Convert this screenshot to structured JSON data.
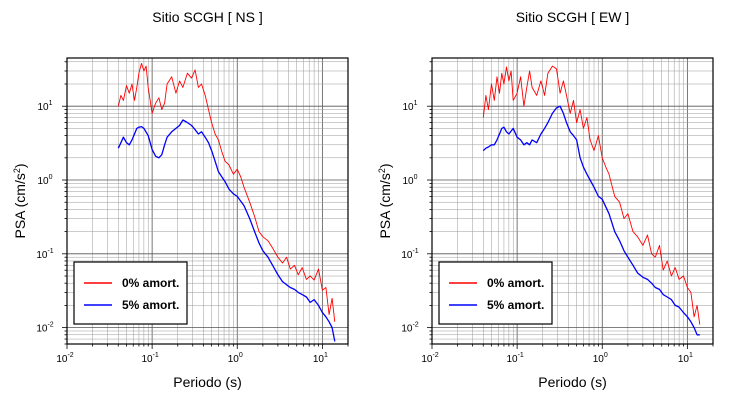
{
  "colors": {
    "series_0": "#ff0000",
    "series_5": "#0000ff",
    "grid": "#000000",
    "frame": "#000000"
  },
  "chart_data": [
    {
      "type": "line",
      "title": "Sitio SCGH [ NS ]",
      "xlabel": "Periodo (s)",
      "ylabel_base": "PSA (cm/s",
      "ylabel_exp": "2",
      "ylabel_end": ")",
      "xscale": "log",
      "yscale": "log",
      "xlim": [
        0.01,
        20
      ],
      "ylim": [
        0.006,
        45
      ],
      "grid": true,
      "legend_position": "bottom-left",
      "xticks": [
        {
          "value": 0.01,
          "base": "10",
          "exp": "-2"
        },
        {
          "value": 0.1,
          "base": "10",
          "exp": "-1"
        },
        {
          "value": 1,
          "base": "10",
          "exp": "0"
        },
        {
          "value": 10,
          "base": "10",
          "exp": "1"
        }
      ],
      "yticks": [
        {
          "value": 0.01,
          "base": "10",
          "exp": "-2"
        },
        {
          "value": 0.1,
          "base": "10",
          "exp": "-1"
        },
        {
          "value": 1,
          "base": "10",
          "exp": "0"
        },
        {
          "value": 10,
          "base": "10",
          "exp": "1"
        }
      ],
      "series": [
        {
          "name": "0% amort.",
          "color": "#ff0000",
          "x": [
            0.04,
            0.043,
            0.046,
            0.05,
            0.054,
            0.058,
            0.062,
            0.066,
            0.07,
            0.075,
            0.08,
            0.085,
            0.09,
            0.1,
            0.11,
            0.12,
            0.13,
            0.14,
            0.15,
            0.17,
            0.19,
            0.21,
            0.23,
            0.26,
            0.29,
            0.32,
            0.35,
            0.38,
            0.42,
            0.46,
            0.5,
            0.55,
            0.6,
            0.66,
            0.72,
            0.8,
            0.9,
            1.0,
            1.1,
            1.2,
            1.4,
            1.6,
            1.8,
            2.0,
            2.3,
            2.6,
            3.0,
            3.4,
            3.8,
            4.2,
            4.7,
            5.2,
            5.8,
            6.5,
            7.2,
            8.0,
            9.0,
            10,
            11,
            12,
            13,
            14
          ],
          "y": [
            10,
            14,
            12,
            19,
            15,
            20,
            12,
            18,
            28,
            38,
            30,
            35,
            18,
            8,
            11,
            13,
            9,
            11,
            20,
            25,
            15,
            22,
            18,
            28,
            24,
            31,
            18,
            20,
            14,
            9,
            6,
            4.2,
            3.5,
            2.4,
            1.8,
            1.6,
            1.2,
            1.4,
            1.1,
            0.8,
            0.5,
            0.32,
            0.2,
            0.17,
            0.15,
            0.12,
            0.09,
            0.075,
            0.09,
            0.062,
            0.07,
            0.052,
            0.065,
            0.045,
            0.05,
            0.044,
            0.062,
            0.032,
            0.035,
            0.015,
            0.025,
            0.012
          ]
        },
        {
          "name": "5% amort.",
          "color": "#0000ff",
          "x": [
            0.04,
            0.043,
            0.046,
            0.05,
            0.054,
            0.058,
            0.062,
            0.066,
            0.07,
            0.075,
            0.08,
            0.09,
            0.1,
            0.11,
            0.12,
            0.13,
            0.14,
            0.15,
            0.17,
            0.19,
            0.21,
            0.23,
            0.26,
            0.29,
            0.32,
            0.35,
            0.38,
            0.42,
            0.46,
            0.5,
            0.55,
            0.6,
            0.66,
            0.72,
            0.8,
            0.9,
            1.0,
            1.2,
            1.4,
            1.6,
            1.8,
            2.0,
            2.3,
            2.6,
            3.0,
            3.4,
            3.8,
            4.2,
            4.7,
            5.2,
            5.8,
            6.5,
            7.2,
            8.0,
            9.0,
            10,
            11,
            12,
            13,
            14
          ],
          "y": [
            2.7,
            3.2,
            3.8,
            3.2,
            3.0,
            3.5,
            4.2,
            5.0,
            5.2,
            5.3,
            5.0,
            4.0,
            2.6,
            2.1,
            2.0,
            2.2,
            3.0,
            3.8,
            4.5,
            5.0,
            5.5,
            6.5,
            6.0,
            5.5,
            4.8,
            4.2,
            4.5,
            3.8,
            3.2,
            2.5,
            1.8,
            1.3,
            1.1,
            0.95,
            0.75,
            0.65,
            0.6,
            0.45,
            0.3,
            0.2,
            0.14,
            0.11,
            0.09,
            0.07,
            0.052,
            0.042,
            0.038,
            0.035,
            0.033,
            0.03,
            0.028,
            0.026,
            0.022,
            0.024,
            0.02,
            0.016,
            0.014,
            0.012,
            0.01,
            0.0065
          ]
        }
      ]
    },
    {
      "type": "line",
      "title": "Sitio SCGH [ EW ]",
      "xlabel": "Periodo (s)",
      "ylabel_base": "PSA (cm/s",
      "ylabel_exp": "2",
      "ylabel_end": ")",
      "xscale": "log",
      "yscale": "log",
      "xlim": [
        0.01,
        20
      ],
      "ylim": [
        0.006,
        45
      ],
      "grid": true,
      "legend_position": "bottom-left",
      "xticks": [
        {
          "value": 0.01,
          "base": "10",
          "exp": "-2"
        },
        {
          "value": 0.1,
          "base": "10",
          "exp": "-1"
        },
        {
          "value": 1,
          "base": "10",
          "exp": "0"
        },
        {
          "value": 10,
          "base": "10",
          "exp": "1"
        }
      ],
      "yticks": [
        {
          "value": 0.01,
          "base": "10",
          "exp": "-2"
        },
        {
          "value": 0.1,
          "base": "10",
          "exp": "-1"
        },
        {
          "value": 1,
          "base": "10",
          "exp": "0"
        },
        {
          "value": 10,
          "base": "10",
          "exp": "1"
        }
      ],
      "series": [
        {
          "name": "0% amort.",
          "color": "#ff0000",
          "x": [
            0.04,
            0.043,
            0.046,
            0.05,
            0.054,
            0.058,
            0.062,
            0.066,
            0.07,
            0.075,
            0.08,
            0.085,
            0.09,
            0.1,
            0.11,
            0.12,
            0.13,
            0.14,
            0.15,
            0.17,
            0.19,
            0.21,
            0.23,
            0.26,
            0.29,
            0.32,
            0.35,
            0.38,
            0.42,
            0.46,
            0.5,
            0.55,
            0.6,
            0.66,
            0.72,
            0.8,
            0.9,
            1.0,
            1.1,
            1.2,
            1.4,
            1.6,
            1.8,
            2.0,
            2.3,
            2.6,
            3.0,
            3.4,
            3.8,
            4.2,
            4.7,
            5.2,
            5.8,
            6.5,
            7.2,
            8.0,
            9.0,
            10,
            11,
            12,
            13,
            14
          ],
          "y": [
            7,
            14,
            9,
            20,
            12,
            25,
            15,
            28,
            20,
            34,
            22,
            30,
            12,
            15,
            25,
            10,
            18,
            30,
            18,
            14,
            22,
            14,
            28,
            35,
            32,
            15,
            22,
            14,
            8,
            12,
            6,
            9,
            5,
            7,
            3.5,
            2.5,
            4,
            2.0,
            1.5,
            1.2,
            0.6,
            0.5,
            0.3,
            0.35,
            0.2,
            0.17,
            0.13,
            0.18,
            0.1,
            0.09,
            0.13,
            0.06,
            0.08,
            0.05,
            0.065,
            0.045,
            0.05,
            0.035,
            0.03,
            0.014,
            0.02,
            0.011
          ]
        },
        {
          "name": "5% amort.",
          "color": "#0000ff",
          "x": [
            0.04,
            0.043,
            0.046,
            0.05,
            0.054,
            0.058,
            0.062,
            0.066,
            0.07,
            0.075,
            0.08,
            0.09,
            0.1,
            0.11,
            0.12,
            0.13,
            0.14,
            0.15,
            0.17,
            0.19,
            0.21,
            0.23,
            0.26,
            0.29,
            0.32,
            0.35,
            0.38,
            0.42,
            0.46,
            0.5,
            0.55,
            0.6,
            0.66,
            0.72,
            0.8,
            0.9,
            1.0,
            1.2,
            1.4,
            1.6,
            1.8,
            2.0,
            2.3,
            2.6,
            3.0,
            3.4,
            3.8,
            4.2,
            4.7,
            5.2,
            5.8,
            6.5,
            7.2,
            8.0,
            9.0,
            10,
            11,
            12,
            13,
            14
          ],
          "y": [
            2.5,
            2.7,
            2.8,
            3.0,
            3.0,
            3.5,
            4.2,
            5.0,
            5.2,
            4.5,
            4.2,
            5.0,
            3.8,
            3.5,
            3.0,
            3.2,
            3.0,
            3.5,
            3.2,
            4.2,
            5.0,
            6.0,
            8.0,
            9.5,
            10,
            8.0,
            6.0,
            4.5,
            4.0,
            3.5,
            2.0,
            1.5,
            1.2,
            1.0,
            0.8,
            0.6,
            0.55,
            0.35,
            0.2,
            0.15,
            0.11,
            0.09,
            0.07,
            0.055,
            0.048,
            0.045,
            0.04,
            0.035,
            0.033,
            0.028,
            0.026,
            0.024,
            0.02,
            0.019,
            0.016,
            0.014,
            0.012,
            0.01,
            0.008,
            0.008
          ]
        }
      ]
    }
  ]
}
